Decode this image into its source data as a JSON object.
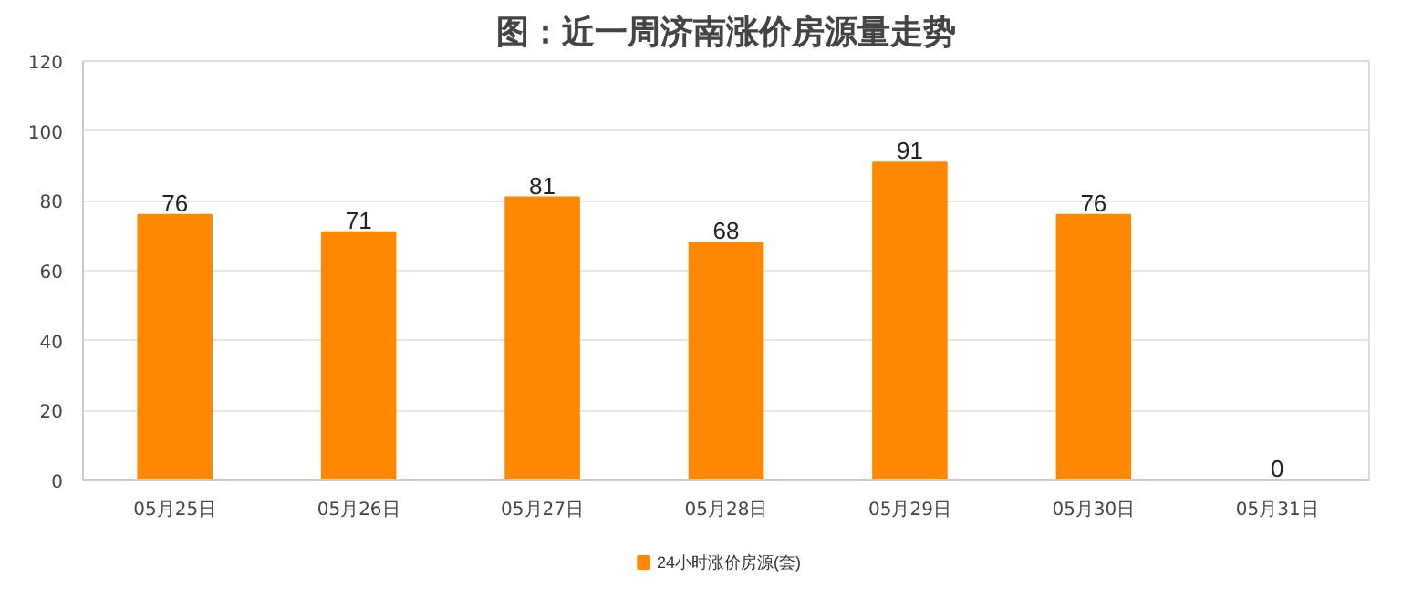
{
  "chart_data": {
    "type": "bar",
    "title": "图：近一周济南涨价房源量走势",
    "categories": [
      "05月25日",
      "05月26日",
      "05月27日",
      "05月28日",
      "05月29日",
      "05月30日",
      "05月31日"
    ],
    "series": [
      {
        "name": "24小时涨价房源(套)",
        "color": "#ff8800",
        "values": [
          76,
          71,
          81,
          68,
          91,
          76,
          0
        ]
      }
    ],
    "ylim": [
      0,
      120
    ],
    "yticks": [
      0,
      20,
      40,
      60,
      80,
      100,
      120
    ],
    "grid": "y",
    "legend": "bottom",
    "data_labels": true
  }
}
